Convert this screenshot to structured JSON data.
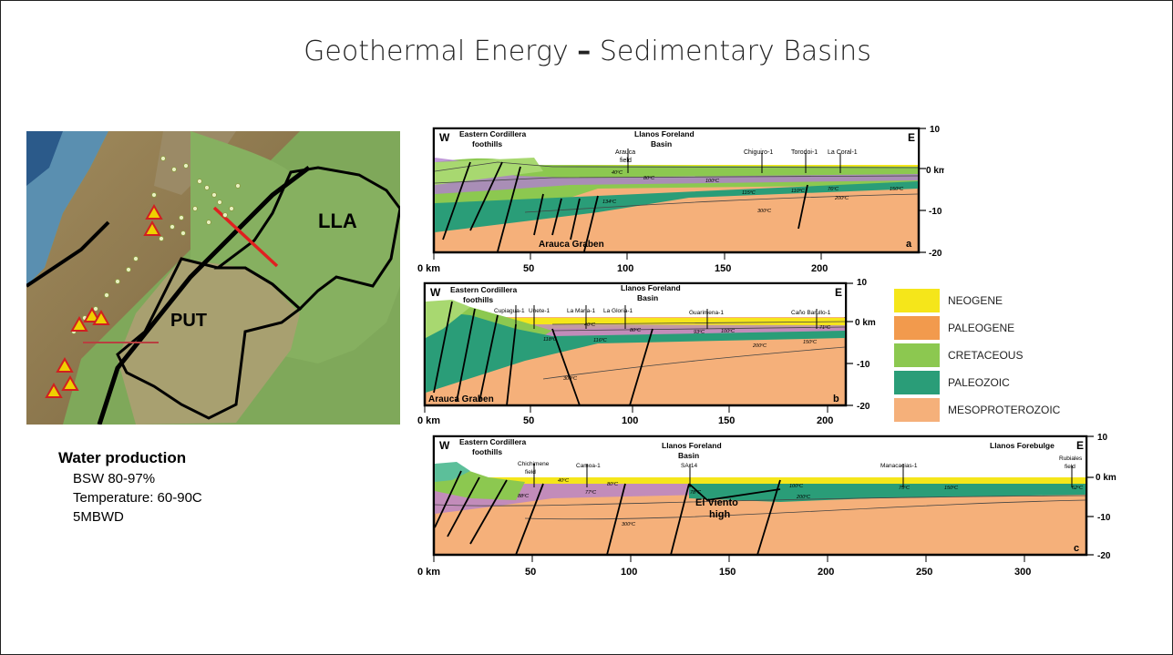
{
  "slide": {
    "title_main": "Geothermal Energy",
    "title_dash": "–",
    "title_sub": "Sedimentary Basins"
  },
  "map": {
    "labels": {
      "lla": "LLA",
      "put": "PUT"
    },
    "colors": {
      "land": "#8c7a4e",
      "lowland": "#7fa85a",
      "sea": "#5a8fb0",
      "boundary": "#000000",
      "section_line": "#e02020"
    }
  },
  "info": {
    "heading": "Water production",
    "lines": [
      "BSW 80-97%",
      "Temperature: 60-90C",
      "5MBWD"
    ]
  },
  "legend": [
    {
      "label": "NEOGENE",
      "color": "#f5e61a"
    },
    {
      "label": "PALEOGENE",
      "color": "#f29a4d"
    },
    {
      "label": "CRETACEOUS",
      "color": "#8cc850"
    },
    {
      "label": "PALEOZOIC",
      "color": "#2a9d78"
    },
    {
      "label": "MESOPROTEROZOIC",
      "color": "#f5b07a"
    }
  ],
  "sections": {
    "a": {
      "panel": "a",
      "west": "W",
      "east": "E",
      "region1": [
        "Eastern Cordillera",
        "foothills"
      ],
      "region2": [
        "Llanos Foreland",
        "Basin"
      ],
      "wells": [
        "Arauca",
        "field",
        "Chiguiro-1",
        "Torodoi-1",
        "La Coral-1"
      ],
      "temps": [
        "40ºC",
        "80ºC",
        "100ºC",
        "134ºC",
        "115ºC",
        "110ºC",
        "76ºC",
        "200ºC",
        "150ºC",
        "300ºC"
      ],
      "graben": "Arauca Graben",
      "depth_ticks": [
        "10",
        "0 km",
        "-10",
        "-20"
      ],
      "x_ticks": [
        "0 km",
        "50",
        "100",
        "150",
        "200"
      ]
    },
    "b": {
      "panel": "b",
      "west": "W",
      "east": "E",
      "region1": [
        "Eastern Cordillera",
        "foothills"
      ],
      "region2": [
        "Llanos Foreland",
        "Basin"
      ],
      "wells": [
        "Cupiagua-1",
        "Unete-1",
        "La Maria-1",
        "La Gloria-1",
        "Guarimena-1",
        "Caño Barullo-1"
      ],
      "temps": [
        "40ºC",
        "80ºC",
        "118ºC",
        "116ºC",
        "93ºC",
        "100ºC",
        "71ºC",
        "200ºC",
        "150ºC",
        "300ºC"
      ],
      "graben": "Arauca Graben",
      "depth_ticks": [
        "10",
        "0 km",
        "-10",
        "-20"
      ],
      "x_ticks": [
        "0 km",
        "50",
        "100",
        "150",
        "200"
      ]
    },
    "c": {
      "panel": "c",
      "west": "W",
      "east": "E",
      "region1": [
        "Eastern Cordillera",
        "foothills"
      ],
      "region2": [
        "Llanos Foreland",
        "Basin"
      ],
      "region3": "Llanos Forebulge",
      "wells": [
        "Chichimene",
        "field",
        "Camoa-1",
        "SA-14",
        "Manacacias-1",
        "Rubiales",
        "field"
      ],
      "temps": [
        "40ºC",
        "80ºC",
        "88ºC",
        "77ºC",
        "78ºC",
        "100ºC",
        "200ºC",
        "75ºC",
        "150ºC",
        "62ºC",
        "300ºC"
      ],
      "high": [
        "El Viento",
        "high"
      ],
      "depth_ticks": [
        "10",
        "0 km",
        "-10",
        "-20"
      ],
      "x_ticks": [
        "0 km",
        "50",
        "100",
        "150",
        "200",
        "250",
        "300"
      ]
    }
  }
}
